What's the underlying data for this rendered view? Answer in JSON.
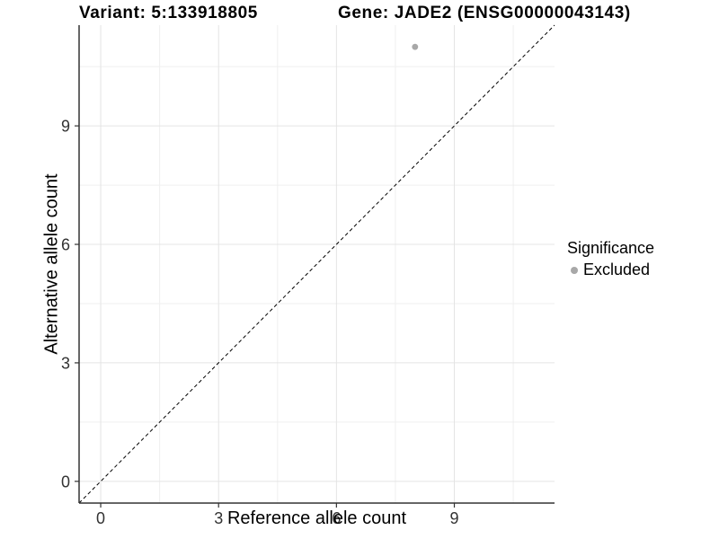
{
  "titles": {
    "variant": "Variant: 5:133918805",
    "gene": "Gene: JADE2 (ENSG00000043143)"
  },
  "chart_data": {
    "type": "scatter",
    "title": "Variant: 5:133918805 / Gene: JADE2 (ENSG00000043143)",
    "xlabel": "Reference allele count",
    "ylabel": "Alternative allele count",
    "xlim": [
      -0.55,
      11.55
    ],
    "ylim": [
      -0.55,
      11.55
    ],
    "x_ticks": [
      0,
      3,
      6,
      9
    ],
    "y_ticks": [
      0,
      3,
      6,
      9
    ],
    "minor_ticks": [
      1.5,
      4.5,
      7.5,
      10.5
    ],
    "grid": true,
    "series": [
      {
        "name": "Excluded",
        "color": "#a8a8a8",
        "points": [
          {
            "x": 8,
            "y": 11
          }
        ]
      }
    ],
    "reference_line": {
      "kind": "identity",
      "style": "dashed",
      "from": -0.55,
      "to": 11.55,
      "color": "#000000"
    },
    "legend": {
      "title": "Significance",
      "position": "right",
      "items": [
        {
          "label": "Excluded",
          "color": "#a8a8a8"
        }
      ]
    },
    "colors": {
      "background": "#ffffff",
      "grid_major": "#e4e4e4",
      "grid_minor": "#efefef",
      "axis_line": "#333333",
      "tick_mark": "#333333",
      "tick_label": "#333333"
    }
  }
}
